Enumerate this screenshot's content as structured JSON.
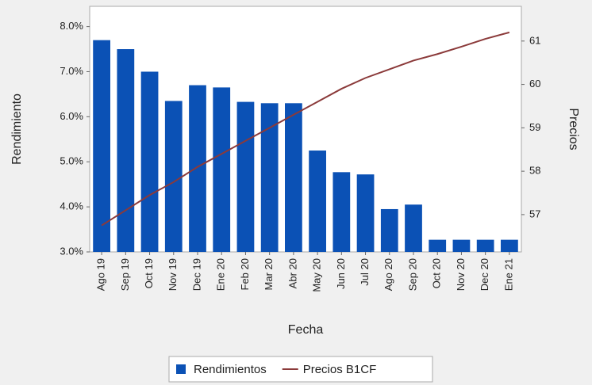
{
  "chart_data": {
    "type": "bar_line",
    "y_label": "Rendimiento",
    "y2_label": "Precios",
    "x_label": "Fecha",
    "categories": [
      "Ago 19",
      "Sep 19",
      "Oct 19",
      "Nov 19",
      "Dec 19",
      "Ene 20",
      "Feb 20",
      "Mar 20",
      "Abr 20",
      "May 20",
      "Jun 20",
      "Jul 20",
      "Ago 20",
      "Sep 20",
      "Oct 20",
      "Nov 20",
      "Dec 20",
      "Ene 21"
    ],
    "series": [
      {
        "name": "Rendimientos",
        "type": "bar",
        "color": "#0b51b5",
        "values": [
          7.7,
          7.5,
          7.0,
          6.35,
          6.7,
          6.65,
          6.33,
          6.3,
          6.3,
          5.25,
          4.77,
          4.72,
          3.95,
          4.05,
          3.27,
          3.27,
          3.27,
          3.27
        ]
      },
      {
        "name": "Precios B1CF",
        "type": "line",
        "axis": "y2",
        "color": "#8b3a3a",
        "values": [
          56.75,
          57.1,
          57.45,
          57.75,
          58.1,
          58.4,
          58.7,
          59.0,
          59.3,
          59.6,
          59.9,
          60.15,
          60.35,
          60.55,
          60.7,
          60.87,
          61.05,
          61.2
        ]
      }
    ],
    "ylim": [
      3,
      8.45
    ],
    "yticks": [
      {
        "value": 3,
        "label": "3.0%"
      },
      {
        "value": 4,
        "label": "4.0%"
      },
      {
        "value": 5,
        "label": "5.0%"
      },
      {
        "value": 6,
        "label": "6.0%"
      },
      {
        "value": 7,
        "label": "7.0%"
      },
      {
        "value": 8,
        "label": "8.0%"
      }
    ],
    "y2lim": [
      56.14,
      61.8
    ],
    "y2ticks": [
      57,
      58,
      59,
      60,
      61
    ]
  }
}
